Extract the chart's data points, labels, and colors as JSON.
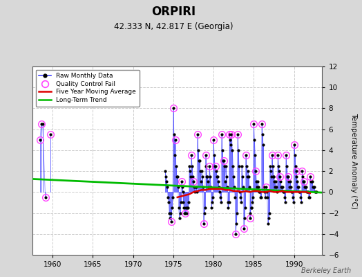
{
  "title": "ORPIRI",
  "subtitle": "42.333 N, 42.817 E (Georgia)",
  "ylabel": "Temperature Anomaly (°C)",
  "credit": "Berkeley Earth",
  "xlim": [
    1957.5,
    1993.5
  ],
  "ylim": [
    -6,
    12
  ],
  "yticks": [
    -6,
    -4,
    -2,
    0,
    2,
    4,
    6,
    8,
    10,
    12
  ],
  "xticks": [
    1960,
    1965,
    1970,
    1975,
    1980,
    1985,
    1990
  ],
  "background_color": "#d8d8d8",
  "plot_bg_color": "#ffffff",
  "raw_color": "#4444ff",
  "qc_color": "#ff44ff",
  "ma_color": "#dd0000",
  "trend_color": "#00bb00",
  "segments": [
    {
      "x": [
        1958.42,
        1958.58,
        1958.75,
        1959.08
      ],
      "y": [
        5.0,
        6.5,
        6.5,
        -0.5
      ]
    },
    {
      "x": [
        1959.75
      ],
      "y": [
        5.5
      ]
    },
    {
      "x": [
        1974.0,
        1974.08,
        1974.17,
        1974.25,
        1974.33,
        1974.42,
        1974.5,
        1974.58,
        1974.67,
        1974.75,
        1974.83,
        1974.92,
        1975.0,
        1975.08,
        1975.17,
        1975.25,
        1975.33,
        1975.42,
        1975.5,
        1975.58,
        1975.67,
        1975.75,
        1975.83,
        1975.92,
        1976.0,
        1976.08,
        1976.17,
        1976.25,
        1976.33,
        1976.42,
        1976.5,
        1976.58,
        1976.67,
        1976.75,
        1976.83,
        1976.92,
        1977.0,
        1977.08,
        1977.17,
        1977.25,
        1977.33,
        1977.42,
        1977.5,
        1977.58,
        1977.67,
        1977.75,
        1977.83,
        1977.92,
        1978.0,
        1978.08,
        1978.17,
        1978.25,
        1978.33,
        1978.42,
        1978.5,
        1978.58,
        1978.67,
        1978.75,
        1978.83,
        1978.92,
        1979.0,
        1979.08,
        1979.17,
        1979.25,
        1979.33,
        1979.42,
        1979.5,
        1979.58,
        1979.67,
        1979.75,
        1979.83,
        1979.92,
        1980.0,
        1980.08,
        1980.17,
        1980.25,
        1980.33,
        1980.42,
        1980.5,
        1980.58,
        1980.67,
        1980.75,
        1980.83,
        1980.92,
        1981.0,
        1981.08,
        1981.17,
        1981.25,
        1981.33,
        1981.42,
        1981.5,
        1981.58,
        1981.67,
        1981.75,
        1981.83,
        1981.92,
        1982.0,
        1982.08,
        1982.17,
        1982.25,
        1982.33,
        1982.42,
        1982.5,
        1982.58,
        1982.67,
        1982.75,
        1982.83,
        1982.92,
        1983.0,
        1983.08,
        1983.17,
        1983.25,
        1983.33,
        1983.42,
        1983.5,
        1983.58,
        1983.67,
        1983.75,
        1983.83,
        1983.92,
        1984.0,
        1984.08,
        1984.17,
        1984.25,
        1984.33,
        1984.42,
        1984.5,
        1984.58,
        1984.67,
        1984.75,
        1984.83,
        1984.92,
        1985.0,
        1985.08,
        1985.17,
        1985.25,
        1985.33,
        1985.42,
        1985.5,
        1985.58,
        1985.67,
        1985.75,
        1985.83,
        1985.92,
        1986.0,
        1986.08,
        1986.17,
        1986.25,
        1986.33,
        1986.42,
        1986.5,
        1986.58,
        1986.67,
        1986.75,
        1986.83,
        1986.92,
        1987.0,
        1987.08,
        1987.17,
        1987.25,
        1987.33,
        1987.42,
        1987.5,
        1987.58,
        1987.67,
        1987.75,
        1987.83,
        1987.92,
        1988.0,
        1988.08,
        1988.17,
        1988.25,
        1988.33,
        1988.42,
        1988.5,
        1988.58,
        1988.67,
        1988.75,
        1988.83,
        1988.92,
        1989.0,
        1989.08,
        1989.17,
        1989.25,
        1989.33,
        1989.42,
        1989.5,
        1989.58,
        1989.67,
        1989.75,
        1989.83,
        1989.92,
        1990.0,
        1990.08,
        1990.17,
        1990.25,
        1990.33,
        1990.42,
        1990.5,
        1990.58,
        1990.67,
        1990.75,
        1990.83,
        1990.92,
        1991.0,
        1991.08,
        1991.17,
        1991.25,
        1991.33,
        1991.42,
        1991.5,
        1991.58,
        1991.67,
        1991.75,
        1991.83,
        1991.92,
        1992.0,
        1992.08,
        1992.17,
        1992.25,
        1992.33,
        1992.42,
        1992.5,
        1992.58,
        1992.67,
        1992.75
      ],
      "y": [
        2.0,
        1.5,
        1.0,
        0.5,
        -0.5,
        -1.0,
        -2.0,
        -2.5,
        -2.0,
        -2.8,
        -1.5,
        -0.5,
        8.0,
        5.5,
        3.5,
        5.0,
        2.5,
        1.5,
        1.5,
        0.5,
        -1.5,
        -2.5,
        -2.0,
        -1.0,
        1.0,
        0.5,
        0.0,
        -1.0,
        -1.5,
        -2.0,
        -2.0,
        -1.5,
        -2.0,
        -1.5,
        -1.5,
        -1.0,
        2.5,
        2.0,
        1.5,
        3.5,
        2.5,
        1.5,
        1.0,
        0.5,
        0.0,
        0.5,
        0.5,
        0.0,
        5.5,
        4.0,
        3.0,
        3.0,
        2.0,
        1.0,
        2.0,
        1.5,
        0.5,
        -3.0,
        -2.0,
        -1.5,
        3.5,
        2.5,
        1.5,
        1.5,
        1.0,
        0.5,
        2.5,
        1.5,
        0.5,
        -1.5,
        -1.0,
        -0.5,
        5.0,
        3.5,
        2.5,
        2.5,
        2.0,
        1.5,
        1.5,
        1.0,
        0.5,
        0.0,
        -0.5,
        -1.0,
        5.5,
        4.0,
        3.0,
        3.0,
        2.5,
        1.0,
        2.5,
        1.5,
        0.5,
        -1.0,
        -1.5,
        -1.0,
        5.5,
        5.0,
        4.5,
        5.5,
        4.0,
        2.5,
        1.5,
        0.5,
        -0.5,
        -4.0,
        -3.0,
        -2.0,
        5.5,
        4.0,
        2.5,
        0.0,
        -0.5,
        -1.0,
        2.5,
        1.5,
        0.5,
        -3.5,
        -2.5,
        -1.5,
        3.5,
        2.5,
        1.5,
        2.0,
        1.5,
        0.5,
        -2.5,
        -2.0,
        -1.5,
        -1.5,
        -1.0,
        -0.5,
        6.5,
        5.0,
        3.5,
        2.0,
        1.0,
        0.5,
        1.0,
        0.5,
        0.0,
        0.0,
        -0.5,
        -0.5,
        6.5,
        5.5,
        4.5,
        0.5,
        0.0,
        -0.5,
        0.5,
        0.0,
        -0.5,
        -3.0,
        -2.5,
        -2.0,
        2.5,
        2.0,
        1.5,
        3.5,
        2.5,
        1.5,
        1.5,
        1.0,
        0.5,
        1.0,
        0.5,
        0.0,
        3.5,
        2.5,
        2.0,
        1.5,
        1.0,
        0.5,
        0.5,
        0.5,
        0.0,
        0.0,
        -0.5,
        -1.0,
        3.5,
        2.5,
        1.5,
        1.5,
        1.0,
        0.5,
        1.0,
        0.5,
        0.0,
        0.0,
        -0.5,
        -1.0,
        4.5,
        3.5,
        2.5,
        2.0,
        1.5,
        1.0,
        0.5,
        0.5,
        0.0,
        0.0,
        -0.5,
        -1.0,
        2.0,
        1.5,
        1.0,
        1.0,
        0.5,
        0.5,
        0.5,
        0.0,
        0.0,
        0.0,
        -0.5,
        -0.5,
        1.5,
        1.0,
        1.0,
        1.0,
        0.5,
        0.5,
        0.5,
        0.0,
        0.0,
        0.0
      ]
    }
  ],
  "qc_fail_points": [
    [
      1958.42,
      5.0
    ],
    [
      1958.58,
      6.5
    ],
    [
      1959.08,
      -0.5
    ],
    [
      1959.75,
      5.5
    ],
    [
      1974.75,
      -2.8
    ],
    [
      1975.0,
      8.0
    ],
    [
      1975.25,
      5.0
    ],
    [
      1976.0,
      1.0
    ],
    [
      1976.5,
      -2.0
    ],
    [
      1977.25,
      3.5
    ],
    [
      1977.5,
      1.0
    ],
    [
      1978.0,
      5.5
    ],
    [
      1978.75,
      -3.0
    ],
    [
      1979.0,
      3.5
    ],
    [
      1979.5,
      2.5
    ],
    [
      1980.0,
      5.0
    ],
    [
      1980.25,
      2.5
    ],
    [
      1981.0,
      5.5
    ],
    [
      1981.25,
      3.0
    ],
    [
      1982.0,
      5.5
    ],
    [
      1982.25,
      5.5
    ],
    [
      1982.75,
      -4.0
    ],
    [
      1983.0,
      5.5
    ],
    [
      1983.75,
      -3.5
    ],
    [
      1984.0,
      3.5
    ],
    [
      1984.5,
      -2.5
    ],
    [
      1985.0,
      6.5
    ],
    [
      1985.25,
      2.0
    ],
    [
      1986.0,
      6.5
    ],
    [
      1986.5,
      0.5
    ],
    [
      1987.25,
      3.5
    ],
    [
      1988.0,
      3.5
    ],
    [
      1988.25,
      1.5
    ],
    [
      1989.0,
      3.5
    ],
    [
      1989.25,
      1.5
    ],
    [
      1990.0,
      4.5
    ],
    [
      1990.25,
      2.0
    ],
    [
      1991.0,
      2.0
    ],
    [
      1991.25,
      1.0
    ],
    [
      1992.0,
      1.5
    ]
  ],
  "moving_avg_x": [
    1975.5,
    1976.0,
    1976.5,
    1977.0,
    1977.5,
    1978.0,
    1978.5,
    1979.0,
    1979.5,
    1980.0,
    1980.5,
    1981.0,
    1981.5,
    1982.0,
    1982.5,
    1983.0,
    1983.5,
    1984.0,
    1984.5,
    1985.0,
    1985.5,
    1986.0,
    1986.5,
    1987.0,
    1987.5,
    1988.0,
    1988.5,
    1989.0,
    1989.5,
    1990.0,
    1990.5,
    1991.0,
    1991.5,
    1992.0
  ],
  "moving_avg_y": [
    -0.5,
    -0.4,
    -0.3,
    -0.2,
    0.0,
    0.1,
    0.2,
    0.2,
    0.3,
    0.3,
    0.3,
    0.3,
    0.2,
    0.2,
    0.1,
    0.1,
    0.0,
    0.1,
    0.0,
    0.1,
    0.1,
    0.0,
    0.0,
    0.1,
    0.0,
    0.0,
    0.1,
    0.0,
    0.0,
    0.0,
    0.0,
    0.0,
    0.0,
    -0.1
  ],
  "trend_x": [
    1957.5,
    1993.5
  ],
  "trend_y": [
    1.25,
    -0.05
  ]
}
